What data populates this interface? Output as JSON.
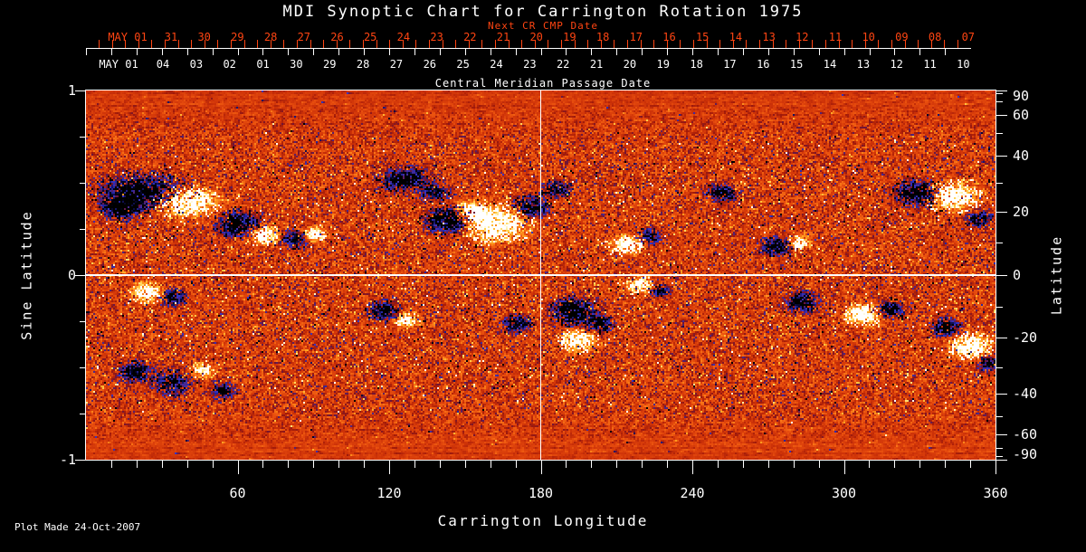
{
  "figure": {
    "title": "MDI Synoptic Chart for Carrington Rotation 1975",
    "footer": "Plot Made 24-Oct-2007"
  },
  "axes": {
    "next_cr": {
      "title": "Next CR CMP Date",
      "month_label": "MAY 01",
      "day_labels": [
        "31",
        "30",
        "29",
        "28",
        "27",
        "26",
        "25",
        "24",
        "23",
        "22",
        "21",
        "20",
        "19",
        "18",
        "17",
        "16",
        "15",
        "14",
        "13",
        "12",
        "11",
        "10",
        "09",
        "08",
        "07"
      ],
      "color": "#ff4512"
    },
    "cmp_date": {
      "title": "Central Meridian Passage Date",
      "month_label": "MAY 01",
      "day_labels": [
        "04",
        "03",
        "02",
        "01",
        "30",
        "29",
        "28",
        "27",
        "26",
        "25",
        "24",
        "23",
        "22",
        "21",
        "20",
        "19",
        "18",
        "17",
        "16",
        "15",
        "14",
        "13",
        "12",
        "11",
        "10"
      ]
    },
    "longitude": {
      "title": "Carrington Longitude",
      "tick_labels": [
        "60",
        "120",
        "180",
        "240",
        "300",
        "360"
      ]
    },
    "sine_latitude": {
      "title": "Sine Latitude",
      "tick_labels": [
        "1",
        "0",
        "-1"
      ]
    },
    "latitude": {
      "title": "Latitude",
      "tick_labels": [
        "90",
        "60",
        "40",
        "20",
        "0",
        "-20",
        "-40",
        "-60",
        "-90"
      ]
    }
  },
  "chart_data": {
    "type": "heatmap",
    "title": "MDI Synoptic Chart for Carrington Rotation 1975",
    "xlabel": "Carrington Longitude",
    "ylabel_left": "Sine Latitude",
    "ylabel_right": "Latitude",
    "x_range": [
      0,
      360
    ],
    "y_range_sine_latitude": [
      -1,
      1
    ],
    "x_ticks_major": [
      60,
      120,
      180,
      240,
      300,
      360
    ],
    "x_tick_minor_step_deg": 10,
    "y_ticks_left_major": [
      1,
      0,
      -1
    ],
    "y_tick_left_minor_step": 0.25,
    "y_ticks_right_labeled_deg": [
      90,
      60,
      40,
      20,
      0,
      -20,
      -40,
      -60,
      -90
    ],
    "y_tick_right_minor_step_deg": 10,
    "top_axis_next_cr_cmp_dates": [
      "MAY 31",
      "30",
      "29",
      "28",
      "27",
      "26",
      "25",
      "24",
      "23",
      "22",
      "21",
      "20",
      "19",
      "18",
      "17",
      "16",
      "15",
      "14",
      "13",
      "12",
      "11",
      "10",
      "09",
      "08",
      "07"
    ],
    "top_axis_cmp_dates": [
      "MAY 04",
      "03",
      "02",
      "01",
      "APR 30",
      "29",
      "28",
      "27",
      "26",
      "25",
      "24",
      "23",
      "22",
      "21",
      "20",
      "19",
      "18",
      "17",
      "16",
      "15",
      "14",
      "13",
      "12",
      "11",
      "10"
    ],
    "reference_lines": {
      "vertical_longitude_deg": 180,
      "horizontal_sine_latitude": 0
    },
    "colormap": {
      "description": "diverging magnetogram palette: strong negative = black/navy-blue, weak field = red-orange, strong positive = yellow/white",
      "stops": [
        [
          -1.0,
          "#000000"
        ],
        [
          -0.82,
          "#020218"
        ],
        [
          -0.62,
          "#181878"
        ],
        [
          -0.48,
          "#3434c8"
        ],
        [
          -0.36,
          "#46288e"
        ],
        [
          -0.26,
          "#6e1438"
        ],
        [
          -0.14,
          "#a01a0a"
        ],
        [
          0.0,
          "#cd3208"
        ],
        [
          0.18,
          "#e84e0e"
        ],
        [
          0.38,
          "#f87316"
        ],
        [
          0.58,
          "#ffa523"
        ],
        [
          0.74,
          "#ffd250"
        ],
        [
          0.87,
          "#fff0aa"
        ],
        [
          1.0,
          "#ffffff"
        ]
      ]
    },
    "active_regions_fields": [
      "longitude_deg",
      "sine_latitude",
      "sigma_longitude_deg",
      "sigma_sine_latitude",
      "amplitude_polarity"
    ],
    "active_regions": [
      [
        22,
        0.45,
        14.3,
        0.078,
        -1.6
      ],
      [
        39,
        0.4,
        10.7,
        0.064,
        1.7
      ],
      [
        14,
        0.36,
        6.4,
        0.049,
        -1.2
      ],
      [
        60,
        0.28,
        7.2,
        0.059,
        -1.3
      ],
      [
        70,
        0.22,
        5.0,
        0.044,
        1.5
      ],
      [
        82,
        0.2,
        4.3,
        0.039,
        -1.2
      ],
      [
        90,
        0.23,
        3.6,
        0.034,
        1.3
      ],
      [
        126,
        0.52,
        7.9,
        0.054,
        -1.4
      ],
      [
        138,
        0.45,
        5.0,
        0.039,
        -1.0
      ],
      [
        143,
        0.3,
        7.9,
        0.059,
        -1.5
      ],
      [
        162,
        0.28,
        10.7,
        0.078,
        1.8
      ],
      [
        153,
        0.35,
        5.0,
        0.044,
        1.4
      ],
      [
        176,
        0.37,
        5.7,
        0.049,
        -1.3
      ],
      [
        186,
        0.47,
        5.0,
        0.039,
        -1.1
      ],
      [
        214,
        0.17,
        5.4,
        0.044,
        1.5
      ],
      [
        223,
        0.21,
        3.9,
        0.034,
        -1.2
      ],
      [
        251,
        0.45,
        5.0,
        0.039,
        -1.2
      ],
      [
        273,
        0.16,
        5.0,
        0.044,
        -1.3
      ],
      [
        282,
        0.18,
        3.6,
        0.034,
        1.2
      ],
      [
        330,
        0.45,
        7.9,
        0.059,
        -1.5
      ],
      [
        343,
        0.43,
        8.6,
        0.064,
        1.7
      ],
      [
        353,
        0.31,
        4.3,
        0.039,
        -1.1
      ],
      [
        24,
        -0.09,
        5.0,
        0.044,
        1.5
      ],
      [
        34,
        -0.12,
        4.3,
        0.039,
        -1.2
      ],
      [
        19,
        -0.52,
        5.7,
        0.049,
        -1.2
      ],
      [
        34,
        -0.58,
        6.4,
        0.054,
        -1.1
      ],
      [
        46,
        -0.51,
        3.9,
        0.034,
        1.2
      ],
      [
        54,
        -0.62,
        4.3,
        0.039,
        -1.0
      ],
      [
        118,
        -0.19,
        5.4,
        0.044,
        -1.3
      ],
      [
        126,
        -0.24,
        3.9,
        0.034,
        1.4
      ],
      [
        170,
        -0.26,
        4.7,
        0.039,
        -1.2
      ],
      [
        193,
        -0.19,
        7.2,
        0.059,
        -1.6
      ],
      [
        195,
        -0.35,
        5.7,
        0.049,
        1.6
      ],
      [
        203,
        -0.26,
        4.3,
        0.039,
        -1.3
      ],
      [
        219,
        -0.05,
        4.3,
        0.039,
        1.4
      ],
      [
        227,
        -0.08,
        3.2,
        0.029,
        -1.1
      ],
      [
        283,
        -0.14,
        5.4,
        0.044,
        -1.3
      ],
      [
        307,
        -0.21,
        5.7,
        0.049,
        1.6
      ],
      [
        318,
        -0.18,
        4.3,
        0.039,
        -1.3
      ],
      [
        340,
        -0.28,
        4.7,
        0.039,
        -1.3
      ],
      [
        350,
        -0.38,
        6.4,
        0.054,
        1.8
      ],
      [
        357,
        -0.47,
        3.6,
        0.034,
        -1.1
      ]
    ]
  }
}
